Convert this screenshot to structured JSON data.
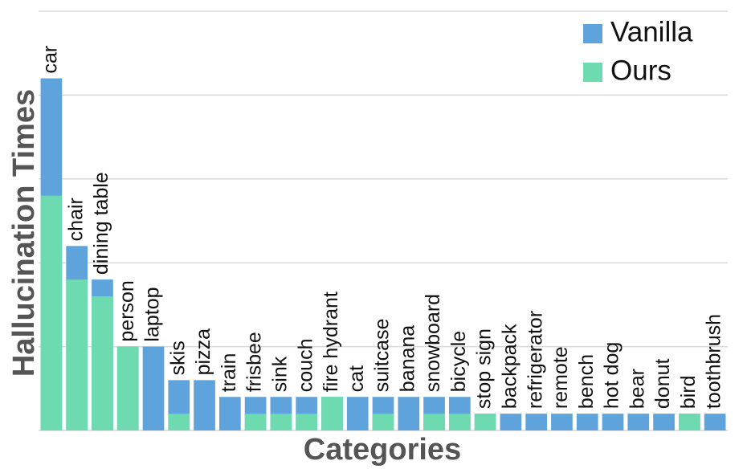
{
  "chart_data": {
    "type": "bar",
    "xlabel": "Categories",
    "ylabel": "Hallucination Times",
    "categories": [
      "car",
      "chair",
      "dining table",
      "person",
      "laptop",
      "skis",
      "pizza",
      "train",
      "frisbee",
      "sink",
      "couch",
      "fire hydrant",
      "cat",
      "suitcase",
      "banana",
      "snowboard",
      "bicycle",
      "stop sign",
      "backpack",
      "refrigerator",
      "remote",
      "bench",
      "hot dog",
      "bear",
      "donut",
      "bird",
      "toothbrush"
    ],
    "series": [
      {
        "name": "Vanilla",
        "color": "#5fa3dc",
        "values": [
          21,
          11,
          9,
          5,
          5,
          3,
          3,
          2,
          2,
          2,
          2,
          2,
          2,
          2,
          2,
          2,
          2,
          1,
          1,
          1,
          1,
          1,
          1,
          1,
          1,
          1,
          1
        ]
      },
      {
        "name": "Ours",
        "color": "#6ddab0",
        "values": [
          14,
          9,
          8,
          5,
          0,
          1,
          0,
          0,
          1,
          1,
          1,
          2,
          0,
          1,
          0,
          1,
          1,
          1,
          0,
          0,
          0,
          0,
          0,
          0,
          0,
          1,
          0
        ]
      }
    ],
    "ylim": [
      0,
      25
    ],
    "yticks": [
      0,
      5,
      10,
      15,
      20,
      25
    ],
    "grid": true,
    "legend": "upper right"
  }
}
